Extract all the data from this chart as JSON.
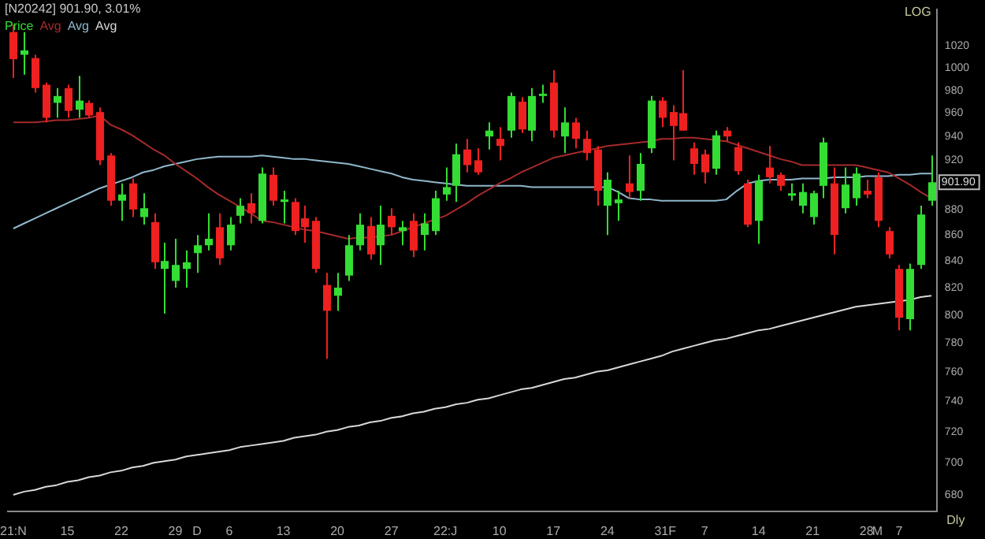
{
  "chart_data": {
    "type": "candlestick",
    "title": "[N20242] 901.90, 3.01%",
    "categories": [
      "21:N",
      null,
      null,
      null,
      null,
      "15",
      null,
      null,
      null,
      null,
      "22",
      null,
      null,
      null,
      null,
      "29",
      null,
      "D",
      null,
      null,
      "6",
      null,
      null,
      null,
      null,
      "13",
      null,
      null,
      null,
      null,
      "20",
      null,
      null,
      null,
      null,
      "27",
      null,
      null,
      null,
      null,
      "22:J",
      null,
      null,
      null,
      null,
      "10",
      null,
      null,
      null,
      null,
      "17",
      null,
      null,
      null,
      null,
      "24",
      null,
      null,
      null,
      null,
      "31",
      "F",
      null,
      null,
      "7",
      null,
      null,
      null,
      null,
      "14",
      null,
      null,
      null,
      null,
      "21",
      null,
      null,
      null,
      null,
      "28",
      "M",
      null,
      "7",
      null,
      null,
      null
    ],
    "series": [
      {
        "name": "Price",
        "color": "#33dd33",
        "colors": [
          "#ee2020",
          "#33dd33",
          "#ee2020",
          "#ee2020",
          "#33dd33",
          "#ee2020",
          "#33dd33",
          "#ee2020",
          "#ee2020",
          "#ee2020",
          "#33dd33",
          "#ee2020",
          "#33dd33",
          "#ee2020",
          "#33dd33",
          "#33dd33",
          "#33dd33",
          "#33dd33",
          "#33dd33",
          "#ee2020",
          "#33dd33",
          "#33dd33",
          "#ee2020",
          "#33dd33",
          "#ee2020",
          "#33dd33",
          "#ee2020",
          "#ee2020",
          "#ee2020",
          "#ee2020",
          "#33dd33",
          "#33dd33",
          "#33dd33",
          "#ee2020",
          "#33dd33",
          "#ee2020",
          "#33dd33",
          "#ee2020",
          "#33dd33",
          "#33dd33",
          "#33dd33",
          "#33dd33",
          "#ee2020",
          "#ee2020",
          "#33dd33",
          "#ee2020",
          "#33dd33",
          "#ee2020",
          "#33dd33",
          "#33dd33",
          "#ee2020",
          "#33dd33",
          "#ee2020",
          "#ee2020",
          "#ee2020",
          "#33dd33",
          "#33dd33",
          "#ee2020",
          "#33dd33",
          "#33dd33",
          "#ee2020",
          "#ee2020",
          "#ee2020",
          "#ee2020",
          "#ee2020",
          "#33dd33",
          "#ee2020",
          "#ee2020",
          "#ee2020",
          "#33dd33",
          "#ee2020",
          "#ee2020",
          "#33dd33",
          "#33dd33",
          "#33dd33",
          "#33dd33",
          "#ee2020",
          "#33dd33",
          "#33dd33",
          "#ee2020",
          "#ee2020",
          "#ee2020",
          "#ee2020",
          "#33dd33",
          "#33dd33",
          "#33dd33"
        ],
        "ohlc": [
          [
            1033,
            1040,
            991,
            1008
          ],
          [
            1012,
            1033,
            994,
            1016
          ],
          [
            1009,
            1012,
            978,
            982
          ],
          [
            985,
            987,
            952,
            956
          ],
          [
            969,
            982,
            956,
            975
          ],
          [
            982,
            985,
            956,
            962
          ],
          [
            963,
            993,
            956,
            971
          ],
          [
            969,
            971,
            956,
            958
          ],
          [
            961,
            965,
            916,
            920
          ],
          [
            924,
            926,
            883,
            887
          ],
          [
            887,
            901,
            871,
            892
          ],
          [
            901,
            905,
            874,
            880
          ],
          [
            874,
            893,
            868,
            881
          ],
          [
            870,
            877,
            834,
            839
          ],
          [
            834,
            854,
            801,
            840
          ],
          [
            825,
            857,
            820,
            837
          ],
          [
            834,
            848,
            820,
            839
          ],
          [
            846,
            860,
            831,
            852
          ],
          [
            852,
            877,
            848,
            857
          ],
          [
            866,
            877,
            837,
            842
          ],
          [
            852,
            874,
            848,
            868
          ],
          [
            875,
            889,
            869,
            883
          ],
          [
            885,
            893,
            869,
            877
          ],
          [
            871,
            914,
            869,
            909
          ],
          [
            908,
            914,
            883,
            887
          ],
          [
            886,
            895,
            869,
            888
          ],
          [
            886,
            889,
            860,
            863
          ],
          [
            873,
            883,
            854,
            866
          ],
          [
            871,
            874,
            831,
            834
          ],
          [
            822,
            831,
            769,
            803
          ],
          [
            814,
            831,
            803,
            820
          ],
          [
            829,
            860,
            825,
            852
          ],
          [
            852,
            877,
            848,
            868
          ],
          [
            867,
            874,
            841,
            845
          ],
          [
            852,
            883,
            837,
            868
          ],
          [
            875,
            881,
            860,
            866
          ],
          [
            863,
            871,
            852,
            866
          ],
          [
            871,
            877,
            843,
            848
          ],
          [
            860,
            877,
            848,
            869
          ],
          [
            863,
            895,
            860,
            889
          ],
          [
            892,
            914,
            887,
            898
          ],
          [
            899,
            934,
            886,
            925
          ],
          [
            929,
            938,
            910,
            916
          ],
          [
            920,
            930,
            908,
            910
          ],
          [
            940,
            952,
            929,
            945
          ],
          [
            938,
            948,
            920,
            932
          ],
          [
            945,
            978,
            939,
            975
          ],
          [
            970,
            974,
            943,
            946
          ],
          [
            945,
            982,
            936,
            975
          ],
          [
            975,
            985,
            969,
            977
          ],
          [
            987,
            998,
            939,
            945
          ],
          [
            940,
            965,
            926,
            952
          ],
          [
            952,
            956,
            930,
            938
          ],
          [
            938,
            945,
            920,
            926
          ],
          [
            929,
            932,
            883,
            895
          ],
          [
            883,
            910,
            860,
            904
          ],
          [
            885,
            895,
            871,
            888
          ],
          [
            901,
            924,
            889,
            894
          ],
          [
            895,
            926,
            887,
            917
          ],
          [
            930,
            975,
            926,
            971
          ],
          [
            971,
            974,
            948,
            956
          ],
          [
            961,
            967,
            920,
            949
          ],
          [
            960,
            998,
            945,
            945
          ],
          [
            930,
            935,
            908,
            917
          ],
          [
            925,
            929,
            901,
            910
          ],
          [
            913,
            945,
            908,
            941
          ],
          [
            945,
            948,
            936,
            940
          ],
          [
            931,
            935,
            908,
            911
          ],
          [
            901,
            904,
            866,
            868
          ],
          [
            871,
            908,
            853,
            903
          ],
          [
            914,
            932,
            901,
            906
          ],
          [
            908,
            910,
            895,
            899
          ],
          [
            891,
            901,
            887,
            893
          ],
          [
            883,
            901,
            877,
            894
          ],
          [
            874,
            895,
            868,
            893
          ],
          [
            899,
            939,
            889,
            935
          ],
          [
            901,
            914,
            845,
            860
          ],
          [
            881,
            914,
            877,
            900
          ],
          [
            889,
            914,
            883,
            909
          ],
          [
            895,
            904,
            889,
            892
          ],
          [
            906,
            910,
            866,
            871
          ],
          [
            863,
            866,
            842,
            845
          ],
          [
            834,
            837,
            789,
            798
          ],
          [
            797,
            838,
            789,
            834
          ],
          [
            837,
            883,
            834,
            876
          ],
          [
            887,
            924,
            883,
            901.9
          ]
        ]
      },
      {
        "name": "Avg",
        "type": "line",
        "color": "#a52a2a",
        "values": [
          952,
          952,
          952,
          953,
          954,
          954,
          955,
          956,
          958,
          950,
          946,
          941,
          935,
          929,
          924,
          917,
          911,
          905,
          898,
          892,
          887,
          882,
          877,
          871,
          870,
          868,
          866,
          864,
          863,
          861,
          859,
          857,
          858,
          858,
          859,
          860,
          863,
          866,
          869,
          872,
          875,
          880,
          885,
          891,
          896,
          901,
          905,
          910,
          914,
          918,
          922,
          924,
          926,
          928,
          930,
          932,
          933,
          934,
          935,
          936,
          938,
          938,
          939,
          939,
          938,
          937,
          936,
          933,
          930,
          927,
          924,
          921,
          919,
          916,
          916,
          916,
          916,
          916,
          916,
          914,
          912,
          910,
          905,
          900,
          894,
          889
        ]
      },
      {
        "name": "Avg",
        "type": "line",
        "color": "#8fb8cc",
        "values": [
          865,
          869,
          873,
          877,
          881,
          885,
          889,
          893,
          897,
          900,
          903,
          906,
          910,
          912,
          915,
          917,
          919,
          921,
          922,
          923,
          923,
          923,
          923,
          924,
          923,
          922,
          921,
          921,
          920,
          919,
          918,
          917,
          915,
          913,
          911,
          909,
          906,
          904,
          903,
          902,
          901,
          900,
          899,
          899,
          899,
          899,
          899,
          899,
          898,
          898,
          898,
          898,
          898,
          898,
          898,
          898,
          894,
          889,
          888,
          888,
          887,
          887,
          887,
          887,
          887,
          887,
          888,
          895,
          901,
          903,
          904,
          904,
          904,
          905,
          905,
          905,
          906,
          906,
          906,
          907,
          907,
          907,
          908,
          908,
          909,
          909
        ]
      },
      {
        "name": "Avg",
        "type": "line",
        "color": "#d8d8d8",
        "values": [
          680,
          682,
          683,
          685,
          686,
          688,
          689,
          691,
          692,
          694,
          695,
          697,
          698,
          700,
          701,
          702,
          704,
          705,
          706,
          707,
          708,
          710,
          711,
          712,
          713,
          714,
          716,
          717,
          718,
          720,
          721,
          723,
          724,
          726,
          727,
          729,
          730,
          732,
          733,
          735,
          736,
          738,
          739,
          741,
          742,
          744,
          746,
          748,
          749,
          751,
          753,
          755,
          756,
          758,
          760,
          761,
          763,
          765,
          767,
          769,
          771,
          774,
          776,
          778,
          780,
          782,
          783,
          785,
          787,
          789,
          790,
          792,
          794,
          796,
          798,
          800,
          802,
          804,
          806,
          807,
          808,
          809,
          810,
          811,
          813,
          814
        ]
      }
    ],
    "ylim": [
      670,
      1054
    ],
    "log": true,
    "yticks": [
      680,
      700,
      720,
      740,
      760,
      780,
      800,
      820,
      840,
      860,
      880,
      920,
      940,
      960,
      980,
      1000,
      1020
    ],
    "annotations": [
      "LOG",
      "Dly",
      {
        "text": "901.90",
        "y": 901.9
      }
    ],
    "legend": "top left",
    "grid": false,
    "marker": "none",
    "line_style": "solid"
  }
}
